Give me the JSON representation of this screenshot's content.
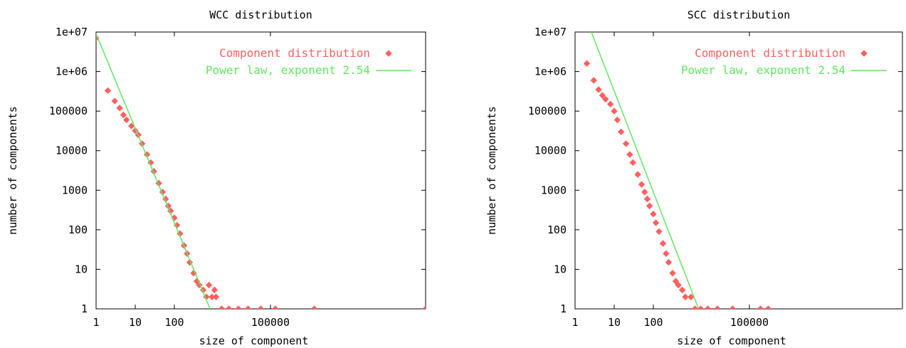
{
  "chart_data": [
    {
      "type": "scatter",
      "title": "WCC distribution",
      "xlabel": "size of component",
      "ylabel": "number of components",
      "xscale": "log",
      "yscale": "log",
      "x_ticks": [
        "1",
        "10",
        "100",
        "100000"
      ],
      "y_ticks": [
        "1e+07",
        "1e+06",
        "100000",
        "10000",
        "1000",
        "100",
        "10",
        "1"
      ],
      "legend_position": "top-right",
      "series": [
        {
          "name": "Component distribution",
          "kind": "scatter",
          "color": "#ff6060",
          "marker": "diamond",
          "points": [
            [
              1,
              7000000
            ],
            [
              2,
              330000
            ],
            [
              3,
              180000
            ],
            [
              4,
              120000
            ],
            [
              5,
              80000
            ],
            [
              6,
              60000
            ],
            [
              8,
              42000
            ],
            [
              10,
              32000
            ],
            [
              12,
              25000
            ],
            [
              15,
              15000
            ],
            [
              20,
              8000
            ],
            [
              25,
              5000
            ],
            [
              30,
              3000
            ],
            [
              40,
              1500
            ],
            [
              50,
              900
            ],
            [
              60,
              600
            ],
            [
              70,
              400
            ],
            [
              80,
              300
            ],
            [
              100,
              200
            ],
            [
              120,
              130
            ],
            [
              150,
              80
            ],
            [
              200,
              40
            ],
            [
              250,
              25
            ],
            [
              300,
              15
            ],
            [
              400,
              8
            ],
            [
              500,
              5
            ],
            [
              600,
              4
            ],
            [
              800,
              3
            ],
            [
              1000,
              2
            ],
            [
              1200,
              4
            ],
            [
              1500,
              2
            ],
            [
              1800,
              3
            ],
            [
              2000,
              2
            ],
            [
              3000,
              1
            ],
            [
              5000,
              1
            ],
            [
              10000,
              1
            ],
            [
              20000,
              1
            ],
            [
              50000,
              1
            ],
            [
              120000,
              1
            ],
            [
              500000,
              1
            ],
            [
              30000000,
              1
            ]
          ]
        },
        {
          "name": "Power law, exponent 2.54",
          "kind": "line",
          "color": "#60e860",
          "x": [
            1,
            1300
          ],
          "y": [
            9000000,
            1
          ]
        }
      ]
    },
    {
      "type": "scatter",
      "title": "SCC distribution",
      "xlabel": "size of component",
      "ylabel": "number of components",
      "xscale": "log",
      "yscale": "log",
      "x_ticks": [
        "1",
        "10",
        "100",
        "100000"
      ],
      "y_ticks": [
        "1e+07",
        "1e+06",
        "100000",
        "10000",
        "1000",
        "100",
        "10",
        "1"
      ],
      "legend_position": "top-right",
      "series": [
        {
          "name": "Component distribution",
          "kind": "scatter",
          "color": "#ff6060",
          "marker": "diamond",
          "points": [
            [
              2,
              1600000
            ],
            [
              3,
              600000
            ],
            [
              4,
              350000
            ],
            [
              5,
              250000
            ],
            [
              6,
              200000
            ],
            [
              8,
              150000
            ],
            [
              10,
              100000
            ],
            [
              12,
              60000
            ],
            [
              15,
              30000
            ],
            [
              20,
              15000
            ],
            [
              25,
              8000
            ],
            [
              30,
              5000
            ],
            [
              40,
              2500
            ],
            [
              50,
              1400
            ],
            [
              60,
              900
            ],
            [
              70,
              600
            ],
            [
              80,
              400
            ],
            [
              100,
              250
            ],
            [
              120,
              150
            ],
            [
              150,
              90
            ],
            [
              200,
              45
            ],
            [
              250,
              25
            ],
            [
              300,
              15
            ],
            [
              400,
              8
            ],
            [
              500,
              5
            ],
            [
              600,
              4
            ],
            [
              800,
              3
            ],
            [
              1000,
              2
            ],
            [
              1500,
              2
            ],
            [
              2000,
              1
            ],
            [
              3000,
              1
            ],
            [
              5000,
              1
            ],
            [
              10000,
              1
            ],
            [
              30000,
              1
            ],
            [
              150000,
              1
            ],
            [
              200000,
              1
            ],
            [
              30000000,
              1
            ]
          ]
        },
        {
          "name": "Power law, exponent 2.54",
          "kind": "line",
          "color": "#60e860",
          "x": [
            2.6,
            2600
          ],
          "y": [
            10000000,
            1
          ]
        }
      ]
    }
  ]
}
